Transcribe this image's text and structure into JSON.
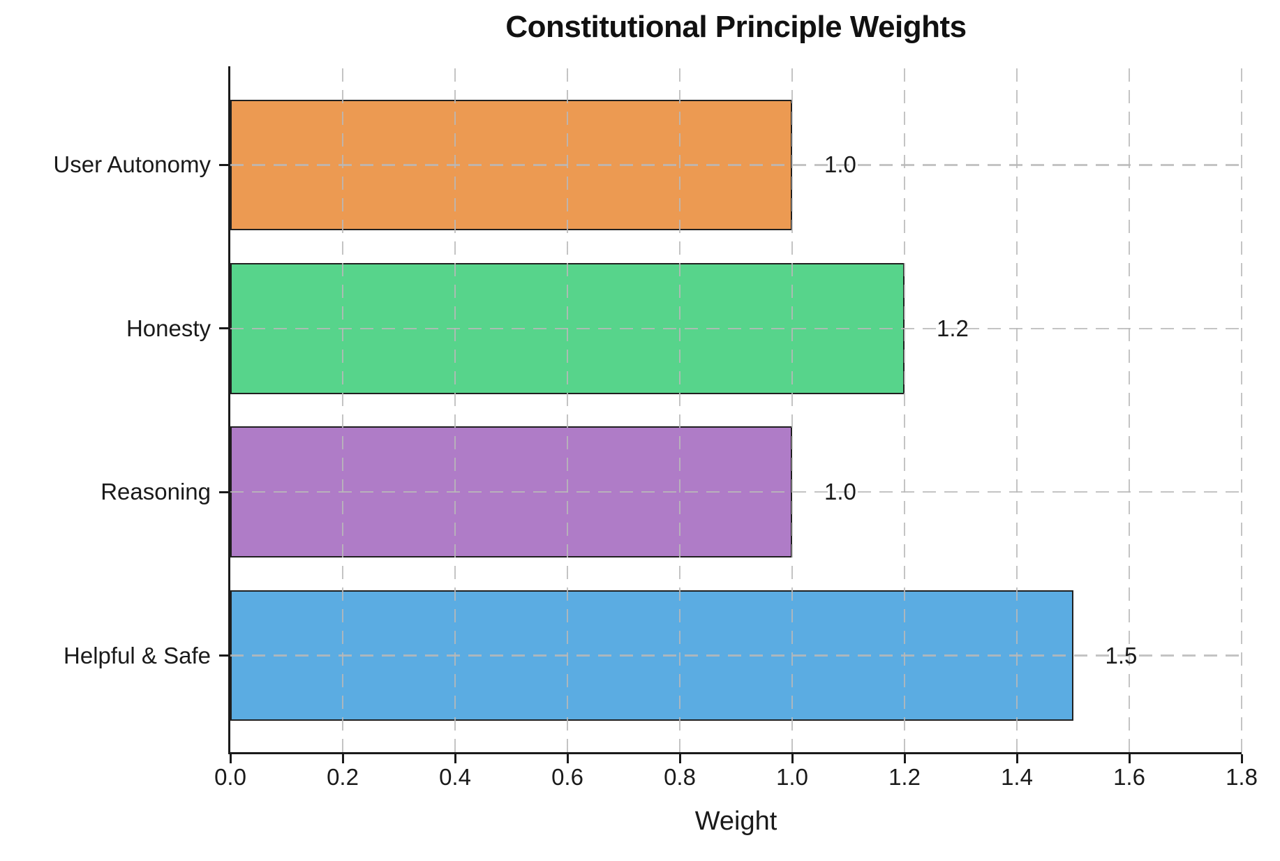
{
  "chart_data": {
    "type": "bar",
    "orientation": "horizontal",
    "title": "Constitutional Principle Weights",
    "xlabel": "Weight",
    "ylabel": "",
    "categories_top_to_bottom": [
      "User Autonomy",
      "Honesty",
      "Reasoning",
      "Helpful & Safe"
    ],
    "values": [
      1.0,
      1.2,
      1.0,
      1.5
    ],
    "value_labels": [
      "1.0",
      "1.2",
      "1.0",
      "1.5"
    ],
    "bar_colors": [
      "#EC9A52",
      "#57D48B",
      "#AF7CC7",
      "#5BACE2"
    ],
    "bar_edge_color": "#202020",
    "xlim": [
      0,
      1.8
    ],
    "x_tick_values": [
      0.0,
      0.2,
      0.4,
      0.6,
      0.8,
      1.0,
      1.2,
      1.4,
      1.6,
      1.8
    ],
    "x_tick_labels": [
      "0.0",
      "0.2",
      "0.4",
      "0.6",
      "0.8",
      "1.0",
      "1.2",
      "1.4",
      "1.6",
      "1.8"
    ],
    "grid": "dashed, both axes, drawn over bars",
    "grid_color": "#b9b9b9",
    "spine_color": "#1a1a1a",
    "text_color": "#1a1a1a",
    "background_color": "#ffffff",
    "legend": "none"
  }
}
